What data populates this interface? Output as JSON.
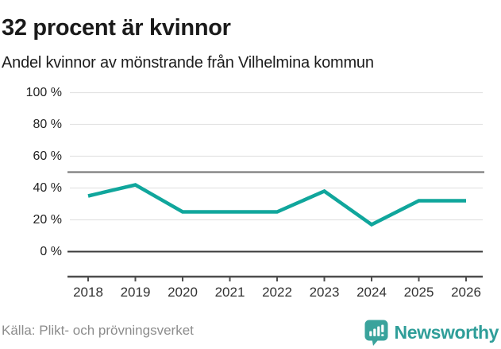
{
  "title": "32 procent är kvinnor",
  "subtitle": "Andel kvinnor av mönstrande från Vilhelmina kommun",
  "source": "Källa: Plikt- och prövningsverket",
  "brand": {
    "name": "Newsworthy",
    "badge_icon": "bar-chart-speech-bubble-icon",
    "badge_color": "#3aa39c",
    "text_color": "#2f9e99"
  },
  "colors": {
    "line": "#10a69c",
    "grid": "#e3e3e3",
    "reference_line": "#7d7d7d",
    "zero_line": "#3a3a3a",
    "axis": "#4d4d4d"
  },
  "chart_data": {
    "type": "line",
    "x": [
      2018,
      2019,
      2020,
      2021,
      2022,
      2023,
      2024,
      2025,
      2026
    ],
    "series": [
      {
        "name": "Andel kvinnor av mönstrande",
        "values": [
          35,
          42,
          25,
          25,
          25,
          38,
          17,
          32,
          32
        ]
      }
    ],
    "unit": "%",
    "yticks": [
      0,
      20,
      40,
      60,
      80,
      100
    ],
    "ytick_suffix": " %",
    "ylim": [
      0,
      100
    ],
    "reference_line": 50,
    "grid": true,
    "legend": false,
    "title": "32 procent är kvinnor",
    "xlabel": "",
    "ylabel": ""
  }
}
